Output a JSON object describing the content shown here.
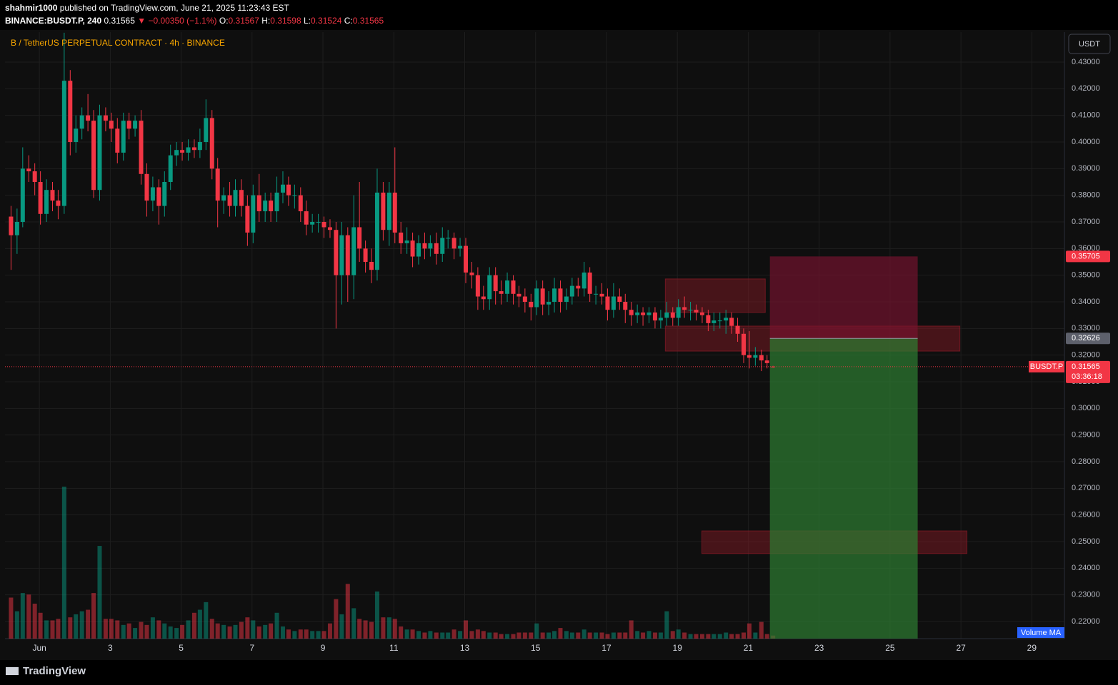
{
  "header": {
    "publisher": "shahmir1000",
    "published": "published on TradingView.com, June 21, 2025 11:23:43 EST",
    "symbol": "BINANCE:BUSDT.P, 240",
    "last": "0.31565",
    "change": "▼ −0.00350 (−1.1%)",
    "ohlc": [
      {
        "label": "O:",
        "value": "0.31567"
      },
      {
        "label": "H:",
        "value": "0.31598"
      },
      {
        "label": "L:",
        "value": "0.31524"
      },
      {
        "label": "C:",
        "value": "0.31565"
      }
    ]
  },
  "chart_data": {
    "type": "candlestick",
    "title": "B / TetherUS PERPETUAL CONTRACT · 4h · BINANCE",
    "currency": "USDT",
    "x": [
      0.2,
      0.37,
      0.53,
      0.7,
      0.87,
      1.03,
      1.2,
      1.37,
      1.53,
      1.7,
      1.87,
      2.03,
      2.2,
      2.37,
      2.53,
      2.7,
      2.87,
      3.03,
      3.2,
      3.37,
      3.53,
      3.7,
      3.87,
      4.03,
      4.2,
      4.37,
      4.53,
      4.7,
      4.87,
      5.03,
      5.2,
      5.37,
      5.53,
      5.7,
      5.87,
      6.03,
      6.2,
      6.37,
      6.53,
      6.7,
      6.87,
      7.03,
      7.2,
      7.37,
      7.53,
      7.7,
      7.87,
      8.03,
      8.2,
      8.37,
      8.53,
      8.7,
      8.87,
      9.03,
      9.2,
      9.37,
      9.53,
      9.7,
      9.87,
      10.03,
      10.2,
      10.37,
      10.53,
      10.7,
      10.87,
      11.03,
      11.2,
      11.37,
      11.53,
      11.7,
      11.87,
      12.03,
      12.2,
      12.37,
      12.53,
      12.7,
      12.87,
      13.03,
      13.2,
      13.37,
      13.53,
      13.7,
      13.87,
      14.03,
      14.2,
      14.37,
      14.53,
      14.7,
      14.87,
      15.03,
      15.2,
      15.37,
      15.53,
      15.7,
      15.87,
      16.03,
      16.2,
      16.37,
      16.53,
      16.7,
      16.87,
      17.03,
      17.2,
      17.37,
      17.53,
      17.7,
      17.87,
      18.03,
      18.2,
      18.37,
      18.53,
      18.7,
      18.87,
      19.03,
      19.2,
      19.37,
      19.53,
      19.7,
      19.87,
      20.03,
      20.2,
      20.37,
      20.53,
      20.7,
      20.87,
      21.03,
      21.2,
      21.37,
      21.53,
      21.7
    ],
    "open": [
      0.372,
      0.365,
      0.37,
      0.39,
      0.389,
      0.385,
      0.373,
      0.382,
      0.378,
      0.376,
      0.423,
      0.4,
      0.405,
      0.41,
      0.408,
      0.382,
      0.41,
      0.408,
      0.405,
      0.396,
      0.408,
      0.405,
      0.408,
      0.388,
      0.378,
      0.383,
      0.376,
      0.385,
      0.395,
      0.397,
      0.396,
      0.398,
      0.397,
      0.4,
      0.409,
      0.39,
      0.378,
      0.38,
      0.376,
      0.382,
      0.376,
      0.366,
      0.38,
      0.374,
      0.378,
      0.374,
      0.381,
      0.384,
      0.38,
      0.38,
      0.374,
      0.369,
      0.37,
      0.37,
      0.368,
      0.367,
      0.35,
      0.365,
      0.35,
      0.368,
      0.36,
      0.355,
      0.352,
      0.381,
      0.367,
      0.381,
      0.366,
      0.362,
      0.363,
      0.357,
      0.362,
      0.36,
      0.362,
      0.358,
      0.364,
      0.364,
      0.36,
      0.361,
      0.351,
      0.35,
      0.342,
      0.341,
      0.35,
      0.344,
      0.343,
      0.348,
      0.343,
      0.342,
      0.34,
      0.338,
      0.345,
      0.339,
      0.34,
      0.345,
      0.34,
      0.342,
      0.346,
      0.345,
      0.351,
      0.343,
      0.343,
      0.342,
      0.337,
      0.342,
      0.34,
      0.337,
      0.335,
      0.336,
      0.335,
      0.336,
      0.333,
      0.334,
      0.336,
      0.334,
      0.338,
      0.337,
      0.337,
      0.336,
      0.335,
      0.332,
      0.333,
      0.333,
      0.334,
      0.331,
      0.328,
      0.32,
      0.319,
      0.32,
      0.318,
      0.31567
    ],
    "high": [
      0.376,
      0.375,
      0.398,
      0.395,
      0.392,
      0.389,
      0.386,
      0.385,
      0.382,
      0.441,
      0.427,
      0.41,
      0.413,
      0.418,
      0.412,
      0.414,
      0.413,
      0.411,
      0.409,
      0.411,
      0.411,
      0.41,
      0.412,
      0.392,
      0.387,
      0.386,
      0.389,
      0.399,
      0.4,
      0.4,
      0.401,
      0.401,
      0.405,
      0.416,
      0.412,
      0.394,
      0.383,
      0.385,
      0.386,
      0.386,
      0.38,
      0.384,
      0.388,
      0.381,
      0.381,
      0.387,
      0.389,
      0.387,
      0.384,
      0.383,
      0.378,
      0.373,
      0.373,
      0.372,
      0.371,
      0.37,
      0.37,
      0.368,
      0.38,
      0.385,
      0.363,
      0.36,
      0.39,
      0.385,
      0.385,
      0.398,
      0.37,
      0.368,
      0.366,
      0.365,
      0.366,
      0.365,
      0.366,
      0.368,
      0.367,
      0.366,
      0.364,
      0.364,
      0.355,
      0.353,
      0.346,
      0.353,
      0.353,
      0.348,
      0.351,
      0.35,
      0.346,
      0.345,
      0.343,
      0.348,
      0.348,
      0.344,
      0.349,
      0.348,
      0.345,
      0.349,
      0.349,
      0.355,
      0.353,
      0.346,
      0.347,
      0.345,
      0.347,
      0.345,
      0.343,
      0.34,
      0.339,
      0.338,
      0.338,
      0.338,
      0.337,
      0.34,
      0.338,
      0.341,
      0.342,
      0.34,
      0.339,
      0.338,
      0.337,
      0.336,
      0.336,
      0.337,
      0.336,
      0.334,
      0.33,
      0.329,
      0.323,
      0.322,
      0.32,
      0.31598
    ],
    "low": [
      0.352,
      0.358,
      0.368,
      0.385,
      0.38,
      0.369,
      0.37,
      0.374,
      0.371,
      0.373,
      0.395,
      0.396,
      0.401,
      0.404,
      0.379,
      0.378,
      0.404,
      0.4,
      0.392,
      0.393,
      0.401,
      0.402,
      0.384,
      0.372,
      0.374,
      0.369,
      0.372,
      0.382,
      0.391,
      0.393,
      0.393,
      0.394,
      0.394,
      0.397,
      0.386,
      0.368,
      0.373,
      0.372,
      0.372,
      0.372,
      0.361,
      0.362,
      0.37,
      0.37,
      0.37,
      0.37,
      0.377,
      0.376,
      0.375,
      0.37,
      0.365,
      0.366,
      0.366,
      0.364,
      0.364,
      0.33,
      0.339,
      0.34,
      0.341,
      0.355,
      0.351,
      0.347,
      0.348,
      0.363,
      0.361,
      0.362,
      0.358,
      0.358,
      0.353,
      0.354,
      0.356,
      0.357,
      0.354,
      0.355,
      0.36,
      0.356,
      0.357,
      0.347,
      0.345,
      0.337,
      0.337,
      0.337,
      0.339,
      0.339,
      0.34,
      0.339,
      0.338,
      0.336,
      0.333,
      0.335,
      0.335,
      0.335,
      0.336,
      0.336,
      0.337,
      0.339,
      0.342,
      0.342,
      0.34,
      0.339,
      0.339,
      0.333,
      0.334,
      0.337,
      0.332,
      0.331,
      0.332,
      0.331,
      0.332,
      0.33,
      0.33,
      0.331,
      0.331,
      0.331,
      0.334,
      0.333,
      0.333,
      0.332,
      0.329,
      0.329,
      0.33,
      0.328,
      0.328,
      0.325,
      0.317,
      0.315,
      0.316,
      0.314,
      0.315,
      0.31524
    ],
    "close": [
      0.365,
      0.37,
      0.39,
      0.389,
      0.385,
      0.373,
      0.382,
      0.378,
      0.376,
      0.423,
      0.4,
      0.405,
      0.41,
      0.408,
      0.382,
      0.41,
      0.408,
      0.405,
      0.396,
      0.408,
      0.405,
      0.408,
      0.388,
      0.378,
      0.383,
      0.376,
      0.385,
      0.395,
      0.397,
      0.396,
      0.398,
      0.397,
      0.4,
      0.409,
      0.39,
      0.378,
      0.38,
      0.376,
      0.382,
      0.376,
      0.366,
      0.38,
      0.374,
      0.378,
      0.374,
      0.381,
      0.384,
      0.38,
      0.38,
      0.374,
      0.369,
      0.37,
      0.37,
      0.368,
      0.367,
      0.35,
      0.365,
      0.35,
      0.368,
      0.36,
      0.355,
      0.352,
      0.381,
      0.367,
      0.381,
      0.366,
      0.362,
      0.363,
      0.357,
      0.362,
      0.36,
      0.362,
      0.358,
      0.364,
      0.364,
      0.36,
      0.361,
      0.351,
      0.35,
      0.342,
      0.341,
      0.35,
      0.344,
      0.343,
      0.348,
      0.343,
      0.342,
      0.34,
      0.338,
      0.345,
      0.339,
      0.34,
      0.345,
      0.34,
      0.342,
      0.346,
      0.345,
      0.351,
      0.343,
      0.343,
      0.342,
      0.337,
      0.342,
      0.34,
      0.337,
      0.335,
      0.336,
      0.335,
      0.336,
      0.333,
      0.334,
      0.336,
      0.334,
      0.338,
      0.337,
      0.337,
      0.336,
      0.335,
      0.332,
      0.333,
      0.333,
      0.334,
      0.331,
      0.328,
      0.32,
      0.319,
      0.32,
      0.318,
      0.317,
      0.31565
    ],
    "volume": [
      27,
      18,
      30,
      29,
      23,
      17,
      12,
      12,
      13,
      100,
      14,
      16,
      18,
      19,
      30,
      61,
      13,
      13,
      12,
      9,
      10,
      7,
      11,
      9,
      14,
      12,
      10,
      8,
      7,
      9,
      12,
      17,
      19,
      24,
      13,
      10,
      9,
      8,
      9,
      11,
      14,
      12,
      8,
      9,
      10,
      17,
      8,
      6,
      5,
      6,
      6,
      5,
      5,
      5,
      10,
      26,
      16,
      36,
      20,
      13,
      12,
      11,
      31,
      14,
      14,
      13,
      8,
      6,
      6,
      5,
      4,
      5,
      4,
      4,
      4,
      6,
      5,
      12,
      5,
      6,
      5,
      4,
      4,
      3,
      3,
      3,
      4,
      4,
      4,
      10,
      4,
      4,
      5,
      7,
      5,
      4,
      4,
      6,
      4,
      4,
      4,
      3,
      4,
      4,
      4,
      12,
      5,
      4,
      5,
      4,
      4,
      18,
      5,
      6,
      4,
      3,
      3,
      3,
      3,
      3,
      3,
      4,
      3,
      3,
      4,
      10,
      4,
      11,
      3,
      2
    ],
    "volume_label": "Volume MA",
    "up_color": "#089981",
    "down_color": "#f23645",
    "xlim": [
      0.03,
      29.92
    ],
    "xticks": [
      {
        "value": 1,
        "label": "Jun"
      },
      3,
      5,
      7,
      9,
      11,
      13,
      15,
      17,
      19,
      21,
      23,
      25,
      27,
      29
    ],
    "ylim": [
      0.21357,
      0.44125
    ],
    "yticks": [
      {
        "value": 0.22,
        "label": "0.22000"
      },
      {
        "value": 0.23,
        "label": "0.23000"
      },
      {
        "value": 0.24,
        "label": "0.24000"
      },
      {
        "value": 0.25,
        "label": "0.25000"
      },
      {
        "value": 0.26,
        "label": "0.26000"
      },
      {
        "value": 0.27,
        "label": "0.27000"
      },
      {
        "value": 0.28,
        "label": "0.28000"
      },
      {
        "value": 0.29,
        "label": "0.29000"
      },
      {
        "value": 0.3,
        "label": "0.30000"
      },
      {
        "value": 0.31,
        "label": "0.31000"
      },
      {
        "value": 0.32,
        "label": "0.32000"
      },
      {
        "value": 0.33,
        "label": "0.33000"
      },
      {
        "value": 0.34,
        "label": "0.34000"
      },
      {
        "value": 0.35,
        "label": "0.35000"
      },
      {
        "value": 0.36,
        "label": "0.36000"
      },
      {
        "value": 0.37,
        "label": "0.37000"
      },
      {
        "value": 0.38,
        "label": "0.38000"
      },
      {
        "value": 0.39,
        "label": "0.39000"
      },
      {
        "value": 0.4,
        "label": "0.40000"
      },
      {
        "value": 0.41,
        "label": "0.41000"
      },
      {
        "value": 0.42,
        "label": "0.42000"
      },
      {
        "value": 0.43,
        "label": "0.43000"
      }
    ],
    "grid": true,
    "zones": [
      {
        "x": [
          18.66,
          21.48
        ],
        "y": [
          0.3486,
          0.336
        ]
      },
      {
        "x": [
          18.66,
          26.97
        ],
        "y": [
          0.3309,
          0.3215
        ]
      },
      {
        "x": [
          19.69,
          27.17
        ],
        "y": [
          0.254,
          0.2455
        ]
      }
    ],
    "position": {
      "x": [
        21.61,
        25.78
      ],
      "stop": 0.35705,
      "entry": 0.32626,
      "target": 0.21357
    },
    "last_price": {
      "symbol": "BUSDT.P",
      "value": 0.31565,
      "countdown": "03:36:18"
    }
  },
  "footer": {
    "logo": "TradingView"
  }
}
